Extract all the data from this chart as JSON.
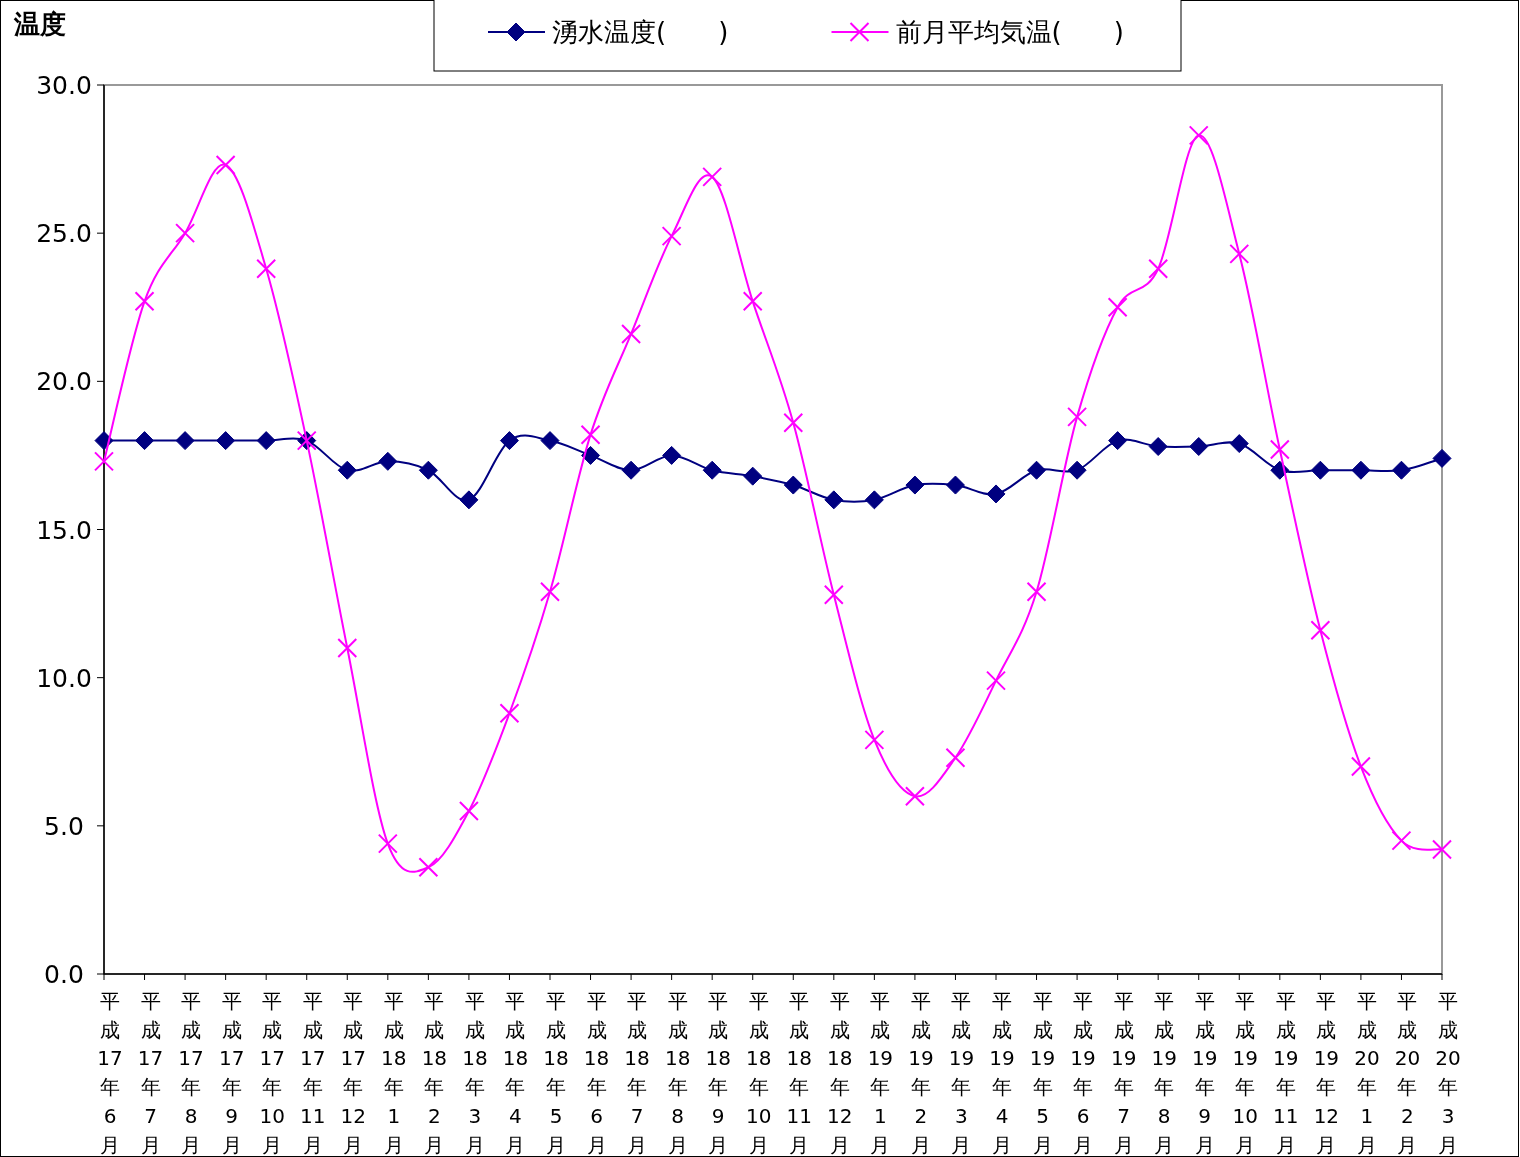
{
  "chart_data": {
    "type": "line",
    "ylabel": "温度",
    "legend": "top",
    "grid": false,
    "categories": [
      "平成17年6月",
      "平成17年7月",
      "平成17年8月",
      "平成17年9月",
      "平成17年10月",
      "平成17年11月",
      "平成17年12月",
      "平成18年1月",
      "平成18年2月",
      "平成18年3月",
      "平成18年4月",
      "平成18年5月",
      "平成18年6月",
      "平成18年7月",
      "平成18年8月",
      "平成18年9月",
      "平成18年10月",
      "平成18年11月",
      "平成18年12月",
      "平成19年1月",
      "平成19年2月",
      "平成19年3月",
      "平成19年4月",
      "平成19年5月",
      "平成19年6月",
      "平成19年7月",
      "平成19年8月",
      "平成19年9月",
      "平成19年10月",
      "平成19年11月",
      "平成19年12月",
      "平成20年1月",
      "平成20年2月",
      "平成20年3月"
    ],
    "ylim": [
      0,
      30
    ],
    "yticks": [
      {
        "value": 0,
        "label": "0.0"
      },
      {
        "value": 5,
        "label": "5.0"
      },
      {
        "value": 10,
        "label": "10.0"
      },
      {
        "value": 15,
        "label": "15.0"
      },
      {
        "value": 20,
        "label": "20.0"
      },
      {
        "value": 25,
        "label": "25.0"
      },
      {
        "value": 30,
        "label": "30.0"
      }
    ],
    "series": [
      {
        "name": "湧水温度(　　)",
        "color": "#000080",
        "marker": "diamond",
        "values": [
          18,
          18,
          18,
          18,
          18,
          18,
          17,
          17.3,
          17,
          16,
          18,
          18,
          17.5,
          17,
          17.5,
          17,
          16.8,
          16.5,
          16,
          16,
          16.5,
          16.5,
          16.2,
          17,
          17,
          18,
          17.8,
          17.8,
          17.9,
          17,
          17,
          17,
          17,
          17.4
        ]
      },
      {
        "name": "前月平均気温(　　)",
        "color": "#ff00ff",
        "marker": "cross",
        "values": [
          17.3,
          22.7,
          25.0,
          27.3,
          23.8,
          18.0,
          11.0,
          4.4,
          3.6,
          5.5,
          8.8,
          12.9,
          18.2,
          21.6,
          24.9,
          26.9,
          22.7,
          18.6,
          12.8,
          7.9,
          6.0,
          7.3,
          9.9,
          12.9,
          18.8,
          22.5,
          23.8,
          28.3,
          24.3,
          17.7,
          11.6,
          7.0,
          4.5,
          4.2
        ]
      }
    ]
  }
}
